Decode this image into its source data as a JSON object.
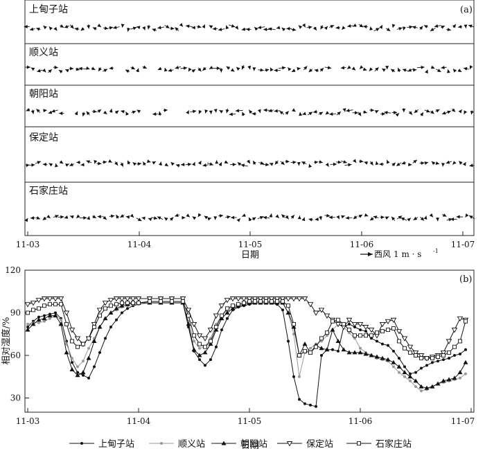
{
  "panel_a": {
    "label": "(a)",
    "stations": [
      "上甸子站",
      "顺义站",
      "朝阳站",
      "保定站",
      "石家庄站"
    ],
    "xticks": [
      "11-03",
      "11-04",
      "11-05",
      "11-06",
      "11-07"
    ],
    "xlabel": "日期",
    "legend_label": "西风",
    "legend_unit": "1 m · s",
    "legend_sup": "-1"
  },
  "chart_data": {
    "type": "line",
    "title": "(b)",
    "xlabel": "日期",
    "ylabel": "相对湿度/%",
    "categories": [
      "11-03",
      "11-04",
      "11-05",
      "11-06",
      "11-07"
    ],
    "ylim": [
      20,
      120
    ],
    "yticks": [
      30,
      60,
      90,
      120
    ],
    "x_range": [
      0,
      4
    ],
    "series": [
      {
        "name": "上甸子站",
        "color": "#111111",
        "marker": "dot",
        "x": [
          0,
          0.05,
          0.1,
          0.15,
          0.2,
          0.25,
          0.3,
          0.35,
          0.4,
          0.45,
          0.5,
          0.55,
          0.6,
          0.65,
          0.7,
          0.75,
          0.8,
          0.85,
          0.9,
          0.95,
          1,
          1.1,
          1.2,
          1.3,
          1.4,
          1.45,
          1.5,
          1.55,
          1.6,
          1.65,
          1.7,
          1.75,
          1.8,
          1.85,
          1.9,
          1.95,
          2,
          2.05,
          2.1,
          2.15,
          2.2,
          2.25,
          2.3,
          2.35,
          2.4,
          2.45,
          2.5,
          2.55,
          2.6,
          2.65,
          2.7,
          2.75,
          2.8,
          2.85,
          2.9,
          2.95,
          3,
          3.05,
          3.1,
          3.15,
          3.2,
          3.25,
          3.3,
          3.35,
          3.4,
          3.45,
          3.5,
          3.55,
          3.6,
          3.65,
          3.7,
          3.75,
          3.8,
          3.85,
          3.9,
          3.95
        ],
        "values": [
          80,
          84,
          87,
          88,
          89,
          90,
          86,
          70,
          55,
          48,
          46,
          44,
          52,
          62,
          72,
          80,
          85,
          90,
          93,
          95,
          96,
          97,
          97,
          97,
          97,
          80,
          63,
          57,
          53,
          57,
          66,
          78,
          86,
          92,
          94,
          95,
          96,
          97,
          97,
          97,
          97,
          96,
          92,
          70,
          45,
          29,
          26,
          25,
          24,
          60,
          64,
          64,
          63,
          80,
          82,
          80,
          78,
          77,
          72,
          70,
          68,
          67,
          63,
          58,
          52,
          47,
          48,
          51,
          53,
          55,
          56,
          57,
          58,
          60,
          61,
          64
        ]
      },
      {
        "name": "顺义站",
        "color": "#999999",
        "marker": "dot",
        "x": [
          0,
          0.05,
          0.1,
          0.15,
          0.2,
          0.25,
          0.3,
          0.35,
          0.4,
          0.45,
          0.5,
          0.55,
          0.6,
          0.65,
          0.7,
          0.75,
          0.8,
          0.85,
          0.9,
          0.95,
          1,
          1.1,
          1.2,
          1.3,
          1.4,
          1.45,
          1.5,
          1.55,
          1.6,
          1.65,
          1.7,
          1.75,
          1.8,
          1.85,
          1.9,
          1.95,
          2,
          2.05,
          2.1,
          2.15,
          2.2,
          2.25,
          2.3,
          2.35,
          2.4,
          2.45,
          2.5,
          2.55,
          2.6,
          2.65,
          2.7,
          2.75,
          2.8,
          2.85,
          2.9,
          2.95,
          3,
          3.05,
          3.1,
          3.15,
          3.2,
          3.25,
          3.3,
          3.35,
          3.4,
          3.45,
          3.5,
          3.55,
          3.6,
          3.65,
          3.7,
          3.75,
          3.8,
          3.85,
          3.9,
          3.95
        ],
        "values": [
          82,
          83,
          83,
          84,
          86,
          88,
          85,
          68,
          58,
          52,
          56,
          65,
          72,
          80,
          86,
          90,
          92,
          94,
          95,
          96,
          96,
          97,
          97,
          97,
          97,
          84,
          70,
          65,
          66,
          72,
          82,
          88,
          92,
          94,
          95,
          96,
          97,
          97,
          97,
          97,
          97,
          97,
          97,
          90,
          75,
          45,
          62,
          65,
          68,
          70,
          74,
          78,
          82,
          80,
          76,
          72,
          65,
          62,
          60,
          58,
          57,
          56,
          52,
          48,
          45,
          42,
          38,
          35,
          36,
          38,
          40,
          41,
          42,
          43,
          44,
          47
        ]
      },
      {
        "name": "朝阳站",
        "color": "#111111",
        "marker": "triangle",
        "x": [
          0,
          0.05,
          0.1,
          0.15,
          0.2,
          0.25,
          0.3,
          0.35,
          0.4,
          0.45,
          0.5,
          0.55,
          0.6,
          0.65,
          0.7,
          0.75,
          0.8,
          0.85,
          0.9,
          0.95,
          1,
          1.1,
          1.2,
          1.3,
          1.4,
          1.45,
          1.5,
          1.55,
          1.6,
          1.65,
          1.7,
          1.75,
          1.8,
          1.85,
          1.9,
          1.95,
          2,
          2.05,
          2.1,
          2.15,
          2.2,
          2.25,
          2.3,
          2.35,
          2.4,
          2.45,
          2.5,
          2.55,
          2.6,
          2.65,
          2.7,
          2.75,
          2.8,
          2.85,
          2.9,
          2.95,
          3,
          3.05,
          3.1,
          3.15,
          3.2,
          3.25,
          3.3,
          3.35,
          3.4,
          3.45,
          3.5,
          3.55,
          3.6,
          3.65,
          3.7,
          3.75,
          3.8,
          3.85,
          3.9,
          3.95
        ],
        "values": [
          78,
          82,
          85,
          86,
          88,
          88,
          82,
          62,
          50,
          46,
          48,
          58,
          70,
          80,
          86,
          90,
          93,
          95,
          96,
          97,
          97,
          97,
          97,
          97,
          97,
          82,
          64,
          60,
          62,
          68,
          78,
          86,
          90,
          93,
          95,
          96,
          97,
          97,
          97,
          97,
          97,
          97,
          97,
          90,
          80,
          60,
          68,
          62,
          67,
          65,
          64,
          78,
          70,
          64,
          62,
          62,
          62,
          61,
          60,
          59,
          58,
          57,
          55,
          52,
          48,
          45,
          42,
          38,
          37,
          38,
          40,
          42,
          43,
          44,
          48,
          55
        ]
      },
      {
        "name": "保定站",
        "color": "#111111",
        "marker": "triangle-open",
        "x": [
          0,
          0.05,
          0.1,
          0.15,
          0.2,
          0.25,
          0.3,
          0.35,
          0.4,
          0.45,
          0.5,
          0.55,
          0.6,
          0.65,
          0.7,
          0.75,
          0.8,
          0.85,
          0.9,
          0.95,
          1,
          1.1,
          1.2,
          1.3,
          1.4,
          1.45,
          1.5,
          1.55,
          1.6,
          1.65,
          1.7,
          1.75,
          1.8,
          1.85,
          1.9,
          1.95,
          2,
          2.05,
          2.1,
          2.15,
          2.2,
          2.25,
          2.3,
          2.35,
          2.4,
          2.45,
          2.5,
          2.55,
          2.6,
          2.65,
          2.7,
          2.75,
          2.8,
          2.85,
          2.9,
          2.95,
          3,
          3.05,
          3.1,
          3.15,
          3.2,
          3.25,
          3.3,
          3.35,
          3.4,
          3.45,
          3.5,
          3.55,
          3.6,
          3.65,
          3.7,
          3.75,
          3.8,
          3.85,
          3.9,
          3.95
        ],
        "values": [
          96,
          97,
          99,
          100,
          100,
          100,
          100,
          90,
          78,
          72,
          68,
          72,
          82,
          92,
          97,
          99,
          100,
          100,
          100,
          100,
          100,
          100,
          100,
          100,
          100,
          92,
          82,
          74,
          72,
          78,
          88,
          95,
          99,
          100,
          100,
          100,
          100,
          100,
          100,
          100,
          100,
          100,
          100,
          100,
          100,
          100,
          100,
          96,
          90,
          92,
          88,
          85,
          82,
          80,
          85,
          82,
          82,
          80,
          78,
          74,
          82,
          84,
          85,
          77,
          72,
          66,
          62,
          60,
          58,
          59,
          60,
          62,
          70,
          78,
          86,
          85
        ]
      },
      {
        "name": "石家庄站",
        "color": "#111111",
        "marker": "square-open",
        "x": [
          0,
          0.05,
          0.1,
          0.15,
          0.2,
          0.25,
          0.3,
          0.35,
          0.4,
          0.45,
          0.5,
          0.55,
          0.6,
          0.65,
          0.7,
          0.75,
          0.8,
          0.85,
          0.9,
          0.95,
          1,
          1.1,
          1.2,
          1.3,
          1.4,
          1.45,
          1.5,
          1.55,
          1.6,
          1.65,
          1.7,
          1.75,
          1.8,
          1.85,
          1.9,
          1.95,
          2,
          2.05,
          2.1,
          2.15,
          2.2,
          2.25,
          2.3,
          2.35,
          2.4,
          2.45,
          2.5,
          2.55,
          2.6,
          2.65,
          2.7,
          2.75,
          2.8,
          2.85,
          2.9,
          2.95,
          3,
          3.05,
          3.1,
          3.15,
          3.2,
          3.25,
          3.3,
          3.35,
          3.4,
          3.45,
          3.5,
          3.55,
          3.6,
          3.65,
          3.7,
          3.75,
          3.8,
          3.85,
          3.9,
          3.95
        ],
        "values": [
          90,
          92,
          93,
          95,
          96,
          96,
          96,
          82,
          70,
          66,
          68,
          72,
          80,
          88,
          93,
          95,
          96,
          97,
          97,
          97,
          97,
          98,
          98,
          98,
          98,
          88,
          74,
          68,
          66,
          70,
          80,
          88,
          93,
          95,
          96,
          97,
          98,
          98,
          98,
          98,
          98,
          98,
          98,
          95,
          82,
          60,
          63,
          62,
          66,
          72,
          76,
          84,
          85,
          82,
          78,
          74,
          74,
          74,
          74,
          76,
          77,
          78,
          79,
          70,
          65,
          62,
          60,
          58,
          58,
          58,
          59,
          60,
          62,
          66,
          70,
          84
        ]
      }
    ]
  }
}
